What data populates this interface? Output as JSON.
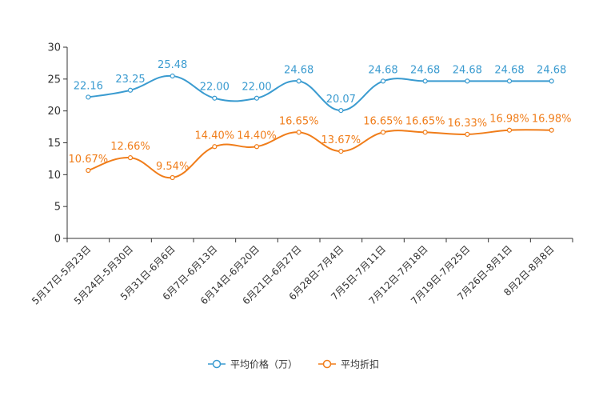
{
  "chart_data": {
    "type": "line",
    "title": "",
    "xlabel": "",
    "ylabel": "",
    "ylim": [
      0,
      30
    ],
    "yticks": [
      0,
      5,
      10,
      15,
      20,
      25,
      30
    ],
    "grid": false,
    "legend_position": "bottom-center",
    "categories": [
      "5月17日-5月23日",
      "5月24日-5月30日",
      "5月31日-6月6日",
      "6月7日-6月13日",
      "6月14日-6月20日",
      "6月21日-6月27日",
      "6月28日-7月4日",
      "7月5日-7月11日",
      "7月12日-7月18日",
      "7月19日-7月25日",
      "7月26日-8月1日",
      "8月2日-8月8日"
    ],
    "series": [
      {
        "name": "平均价格（万）",
        "color": "#3a9bd0",
        "values": [
          22.16,
          23.25,
          25.48,
          22.0,
          22.0,
          24.68,
          20.07,
          24.68,
          24.68,
          24.68,
          24.68,
          24.68
        ],
        "labels": [
          "22.16",
          "23.25",
          "25.48",
          "22.00",
          "22.00",
          "24.68",
          "20.07",
          "24.68",
          "24.68",
          "24.68",
          "24.68",
          "24.68"
        ]
      },
      {
        "name": "平均折扣",
        "color": "#f07d1a",
        "values": [
          10.67,
          12.66,
          9.54,
          14.4,
          14.4,
          16.65,
          13.67,
          16.65,
          16.65,
          16.33,
          16.98,
          16.98
        ],
        "labels": [
          "10.67%",
          "12.66%",
          "9.54%",
          "14.40%",
          "14.40%",
          "16.65%",
          "13.67%",
          "16.65%",
          "16.65%",
          "16.33%",
          "16.98%",
          "16.98%"
        ]
      }
    ]
  }
}
